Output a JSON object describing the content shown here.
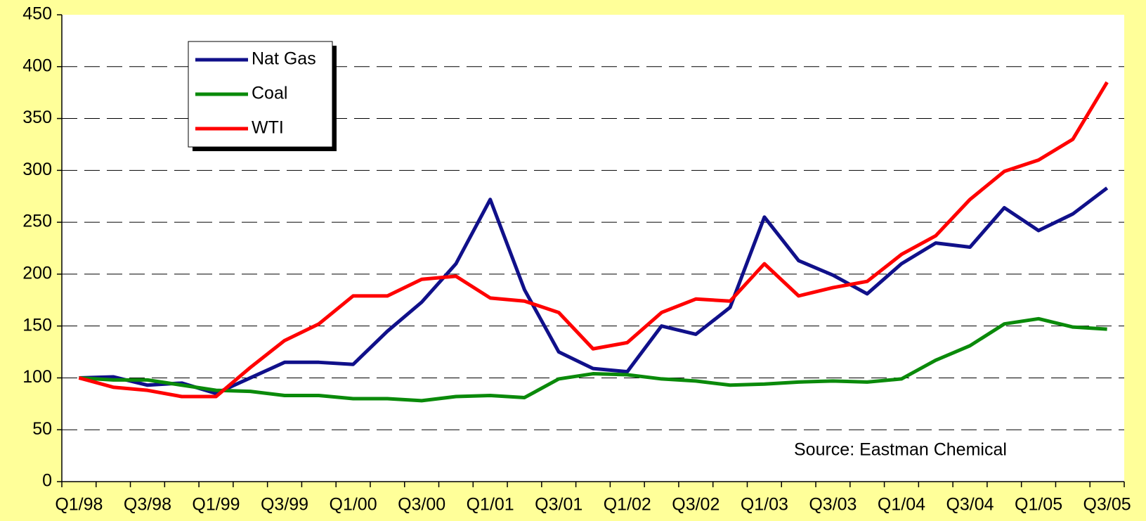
{
  "chart_data": {
    "type": "line",
    "categories": [
      "Q1/98",
      null,
      "Q3/98",
      null,
      "Q1/99",
      null,
      "Q3/99",
      null,
      "Q1/00",
      null,
      "Q3/00",
      null,
      "Q1/01",
      null,
      "Q3/01",
      null,
      "Q1/02",
      null,
      "Q3/02",
      null,
      "Q1/03",
      null,
      "Q3/03",
      null,
      "Q1/04",
      null,
      "Q3/04",
      null,
      "Q1/05",
      null,
      "Q3/05"
    ],
    "series": [
      {
        "name": "Nat Gas",
        "color": "#10108a",
        "values": [
          100,
          101,
          93,
          95,
          85,
          100,
          115,
          115,
          113,
          145,
          173,
          210,
          272,
          185,
          125,
          109,
          106,
          150,
          142,
          168,
          255,
          213,
          199,
          181,
          210,
          230,
          226,
          264,
          242,
          258,
          283
        ]
      },
      {
        "name": "Coal",
        "color": "#0a8a0a",
        "values": [
          100,
          98,
          98,
          93,
          88,
          87,
          83,
          83,
          80,
          80,
          78,
          82,
          83,
          81,
          99,
          104,
          103,
          99,
          97,
          93,
          94,
          96,
          97,
          96,
          99,
          117,
          131,
          152,
          157,
          149,
          147
        ]
      },
      {
        "name": "WTI",
        "color": "#ff0000",
        "values": [
          100,
          91,
          88,
          82,
          82,
          110,
          136,
          152,
          179,
          179,
          195,
          198,
          177,
          174,
          163,
          128,
          134,
          163,
          176,
          174,
          210,
          179,
          187,
          193,
          219,
          237,
          272,
          299,
          310,
          330,
          385
        ]
      }
    ],
    "ylim": [
      0,
      450
    ],
    "yticks": [
      0,
      50,
      100,
      150,
      200,
      250,
      300,
      350,
      400,
      450
    ],
    "grid": true,
    "legend": "upper left",
    "annotation": "Source:  Eastman Chemical"
  }
}
